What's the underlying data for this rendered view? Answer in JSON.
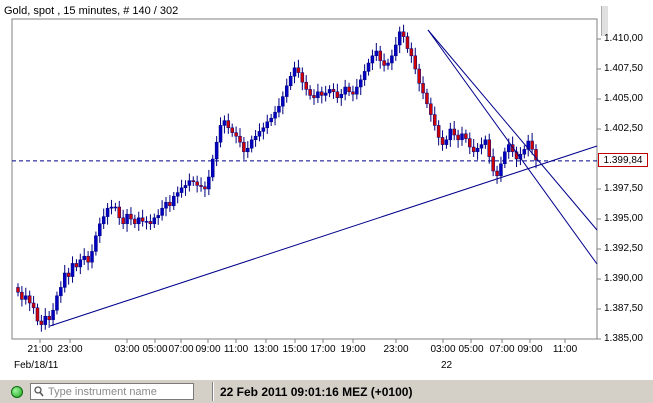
{
  "chart_title": "Gold, spot , 15 minutes, # 140 / 302",
  "current_price_label": "1.399,84",
  "y_ticks": [
    {
      "value": 1410.0,
      "label": "1.410,00"
    },
    {
      "value": 1407.5,
      "label": "1.407,50"
    },
    {
      "value": 1405.0,
      "label": "1.405,00"
    },
    {
      "value": 1402.5,
      "label": "1.402,50"
    },
    {
      "value": 1397.5,
      "label": "1.397,50"
    },
    {
      "value": 1395.0,
      "label": "1.395,00"
    },
    {
      "value": 1392.5,
      "label": "1.392,50"
    },
    {
      "value": 1390.0,
      "label": "1.390,00"
    },
    {
      "value": 1387.5,
      "label": "1.387,50"
    },
    {
      "value": 1385.0,
      "label": "1.385,00"
    }
  ],
  "x_ticks": [
    "21:00",
    "23:00",
    "03:00",
    "05:00",
    "07:00",
    "09:00",
    "11:00",
    "13:00",
    "15:00",
    "17:00",
    "19:00",
    "23:00",
    "03:00",
    "05:00",
    "07:00",
    "09:00",
    "11:00"
  ],
  "date_labels": {
    "first": "Feb/18/11",
    "second": "22"
  },
  "search": {
    "placeholder": "Type instrument name"
  },
  "status": {
    "datetime": "22 Feb 2011 09:01:16  MEZ (+0100)"
  },
  "colors": {
    "up_candle": "#0000c0",
    "down_candle": "#d00000",
    "trend_line": "#00008b",
    "current_price_line": "#00008b",
    "price_tag_border": "#c00000"
  },
  "chart_data": {
    "type": "candlestick",
    "title": "Gold, spot , 15 minutes, # 140 / 302",
    "ylim": [
      1385.0,
      1411.5
    ],
    "current_price": 1399.84,
    "grid": true,
    "closes": [
      1388.9,
      1388.3,
      1388.6,
      1388.0,
      1387.6,
      1386.5,
      1386.2,
      1386.9,
      1386.6,
      1387.4,
      1388.6,
      1389.3,
      1390.5,
      1390.2,
      1391.3,
      1391.0,
      1391.6,
      1391.9,
      1391.4,
      1392.3,
      1393.6,
      1394.6,
      1395.2,
      1395.9,
      1396.0,
      1396.0,
      1395.1,
      1394.6,
      1395.4,
      1395.0,
      1394.6,
      1395.1,
      1394.8,
      1394.8,
      1394.6,
      1395.1,
      1395.3,
      1395.9,
      1396.4,
      1396.1,
      1396.9,
      1397.2,
      1397.6,
      1397.8,
      1398.2,
      1398.1,
      1397.8,
      1397.7,
      1397.5,
      1398.5,
      1400.0,
      1401.4,
      1402.8,
      1403.2,
      1402.6,
      1402.2,
      1401.9,
      1401.4,
      1400.6,
      1400.9,
      1401.6,
      1401.9,
      1402.3,
      1402.6,
      1403.1,
      1403.4,
      1403.9,
      1404.4,
      1405.2,
      1406.1,
      1406.9,
      1407.6,
      1407.2,
      1406.4,
      1405.8,
      1405.3,
      1405.1,
      1405.6,
      1405.3,
      1405.5,
      1405.8,
      1405.6,
      1405.1,
      1405.4,
      1406.0,
      1405.6,
      1405.4,
      1406.0,
      1406.6,
      1407.3,
      1408.0,
      1408.6,
      1409.0,
      1408.2,
      1407.8,
      1408.0,
      1408.6,
      1409.5,
      1410.6,
      1410.2,
      1409.2,
      1408.6,
      1407.5,
      1406.3,
      1405.5,
      1404.6,
      1403.7,
      1402.8,
      1401.8,
      1401.2,
      1401.6,
      1402.5,
      1402.0,
      1401.6,
      1402.1,
      1401.7,
      1401.0,
      1400.6,
      1400.9,
      1401.2,
      1401.6,
      1400.2,
      1399.0,
      1398.6,
      1399.6,
      1400.6,
      1401.2,
      1400.6,
      1400.0,
      1400.4,
      1400.8,
      1401.5,
      1400.8,
      1399.9
    ]
  }
}
